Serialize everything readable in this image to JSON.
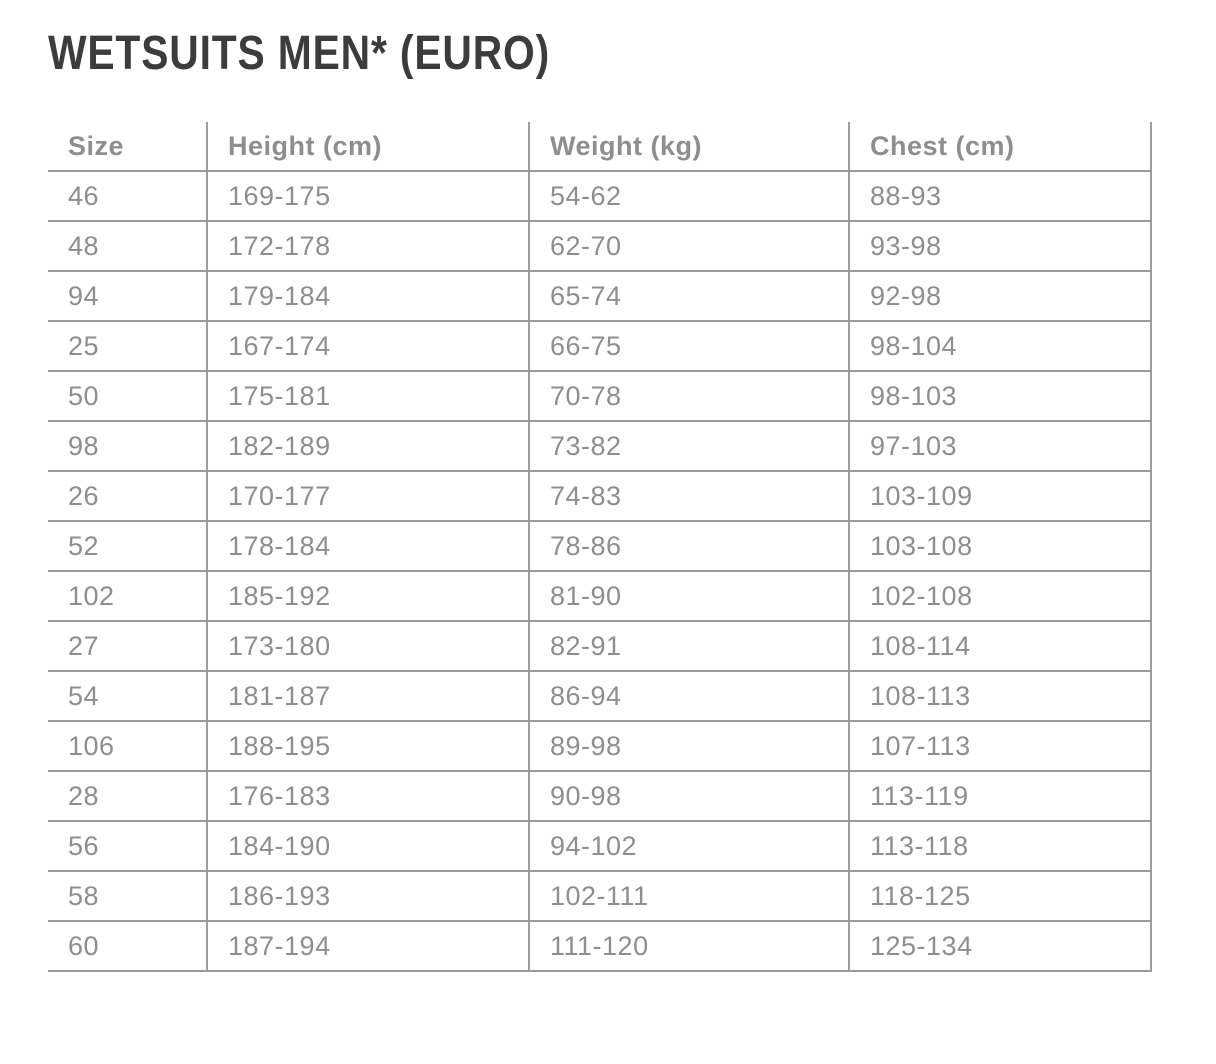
{
  "page": {
    "title": "WETSUITS MEN* (EURO)"
  },
  "colors": {
    "title_text": "#3c3c3c",
    "table_text": "#8e8e8e",
    "table_border": "#9b9b9b",
    "background": "#ffffff"
  },
  "table": {
    "columns": [
      "Size",
      "Height (cm)",
      "Weight (kg)",
      "Chest (cm)"
    ],
    "rows": [
      [
        "46",
        "169-175",
        "54-62",
        "88-93"
      ],
      [
        "48",
        "172-178",
        "62-70",
        "93-98"
      ],
      [
        "94",
        "179-184",
        "65-74",
        "92-98"
      ],
      [
        "25",
        "167-174",
        "66-75",
        "98-104"
      ],
      [
        "50",
        "175-181",
        "70-78",
        "98-103"
      ],
      [
        "98",
        "182-189",
        "73-82",
        "97-103"
      ],
      [
        "26",
        "170-177",
        "74-83",
        "103-109"
      ],
      [
        "52",
        "178-184",
        "78-86",
        "103-108"
      ],
      [
        "102",
        "185-192",
        "81-90",
        "102-108"
      ],
      [
        "27",
        "173-180",
        "82-91",
        "108-114"
      ],
      [
        "54",
        "181-187",
        "86-94",
        "108-113"
      ],
      [
        "106",
        "188-195",
        "89-98",
        "107-113"
      ],
      [
        "28",
        "176-183",
        "90-98",
        "113-119"
      ],
      [
        "56",
        "184-190",
        "94-102",
        "113-118"
      ],
      [
        "58",
        "186-193",
        "102-111",
        "118-125"
      ],
      [
        "60",
        "187-194",
        "111-120",
        "125-134"
      ]
    ]
  }
}
